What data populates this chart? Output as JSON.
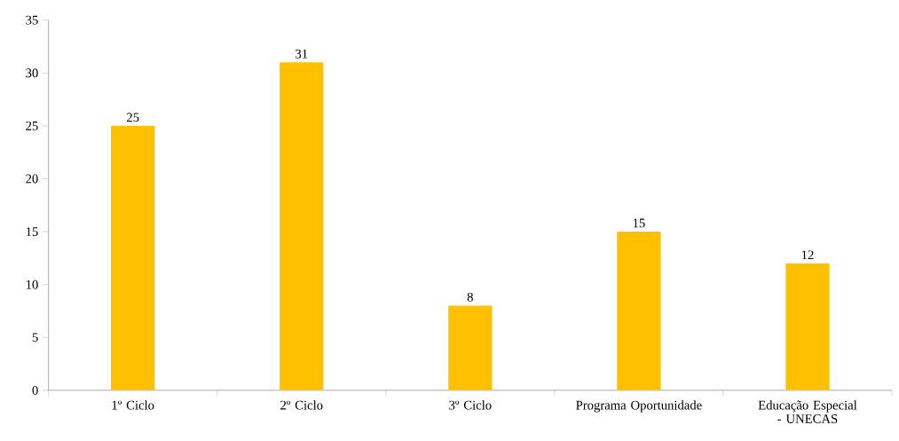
{
  "chart_data": {
    "type": "bar",
    "categories": [
      "1º Ciclo",
      "2º Ciclo",
      "3º Ciclo",
      "Programa Oportunidade",
      "Educação Especial - UNECAS"
    ],
    "values": [
      25,
      31,
      8,
      15,
      12
    ],
    "color": "#ffc000",
    "ylim": [
      0,
      35
    ],
    "yticks": [
      0,
      5,
      10,
      15,
      20,
      25,
      30,
      35
    ],
    "grid": false,
    "data_labels": true
  }
}
